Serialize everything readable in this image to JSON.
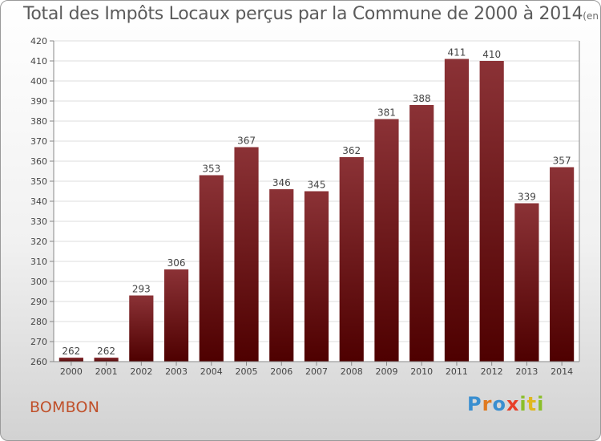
{
  "header": {
    "title": "Total des Impôts Locaux perçus par la Commune de 2000 à 2014",
    "unit": "(en milliers d'€)"
  },
  "footer": {
    "commune": "BOMBON",
    "logo": {
      "letters": [
        "P",
        "r",
        "o",
        "x",
        "i",
        "t",
        "i"
      ],
      "colors": [
        "#3a8fd0",
        "#e07a1f",
        "#3a8fd0",
        "#e8402a",
        "#8bbf2a",
        "#e0b81f",
        "#8bbf2a"
      ]
    }
  },
  "colors": {
    "bar_top": "#8b3236",
    "bar_bottom": "#4e0000",
    "grid": "#dddddd",
    "axis": "#888888",
    "text": "#444444"
  },
  "chart_data": {
    "type": "bar",
    "categories": [
      "2000",
      "2001",
      "2002",
      "2003",
      "2004",
      "2005",
      "2006",
      "2007",
      "2008",
      "2009",
      "2010",
      "2011",
      "2012",
      "2013",
      "2014"
    ],
    "values": [
      262,
      262,
      293,
      306,
      353,
      367,
      346,
      345,
      362,
      381,
      388,
      411,
      410,
      339,
      357
    ],
    "title": "Total des Impôts Locaux perçus par la Commune de 2000 à 2014",
    "ylim": [
      260,
      420
    ],
    "yticks": [
      260,
      270,
      280,
      290,
      300,
      310,
      320,
      330,
      340,
      350,
      360,
      370,
      380,
      390,
      400,
      410,
      420
    ],
    "grid": true,
    "legend": "none"
  }
}
